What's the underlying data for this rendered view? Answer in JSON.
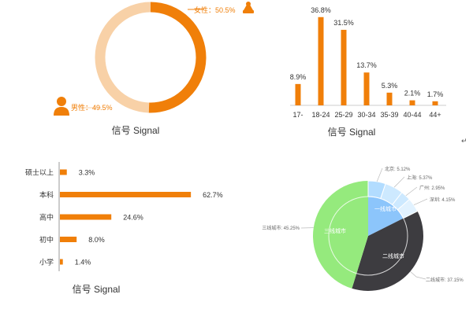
{
  "colors": {
    "orange": "#f07f09",
    "peach": "#f8d1a7",
    "text": "#333333",
    "gray_label": "#666666",
    "pie_green": "#95ea7d",
    "pie_dark": "#3d3c40",
    "pie_blue": "#8cc5fb",
    "pie_light1": "#b2dcff",
    "pie_light2": "#cde9ff",
    "pie_light3": "#e1f2ff"
  },
  "chart_data": [
    {
      "type": "pie",
      "id": "gender",
      "labels": [
        "女性：50.5%",
        "男性：49.5%"
      ],
      "values": [
        50.5,
        49.5
      ],
      "icons": [
        "female-icon",
        "male-icon"
      ],
      "caption": "信号 Signal"
    },
    {
      "type": "bar",
      "id": "age",
      "categories": [
        "17-",
        "18-24",
        "25-29",
        "30-34",
        "35-39",
        "40-44",
        "44+"
      ],
      "values": [
        8.9,
        36.8,
        31.5,
        13.7,
        5.3,
        2.1,
        1.7
      ],
      "value_labels": [
        "8.9%",
        "36.8%",
        "31.5%",
        "13.7%",
        "5.3%",
        "2.1%",
        "1.7%"
      ],
      "caption": "信号 Signal"
    },
    {
      "type": "bar",
      "id": "education",
      "orientation": "horizontal",
      "categories": [
        "硕士以上",
        "本科",
        "高中",
        "初中",
        "小学"
      ],
      "values": [
        3.3,
        62.7,
        24.6,
        8.0,
        1.4
      ],
      "value_labels": [
        "3.3%",
        "62.7%",
        "24.6%",
        "8.0%",
        "1.4%"
      ],
      "caption": "信号 Signal"
    },
    {
      "type": "pie",
      "id": "city",
      "slices": [
        {
          "name": "一线城市",
          "value": 17.6
        },
        {
          "name": "二线城市",
          "value": 37.15
        },
        {
          "name": "三线城市",
          "value": 45.25
        }
      ],
      "inner_slices": [
        {
          "name": "北京",
          "value": 5.12,
          "label": "北京: 5.12%"
        },
        {
          "name": "上海",
          "value": 5.37,
          "label": "上海: 5.37%"
        },
        {
          "name": "广州",
          "value": 2.95,
          "label": "广州: 2.95%"
        },
        {
          "name": "深圳",
          "value": 4.15,
          "label": "深圳: 4.15%"
        }
      ],
      "outer_labels": [
        "二线城市: 37.15%",
        "三线城市: 45.25%"
      ],
      "caption": ""
    }
  ],
  "misc": {
    "return_mark": "↵"
  }
}
